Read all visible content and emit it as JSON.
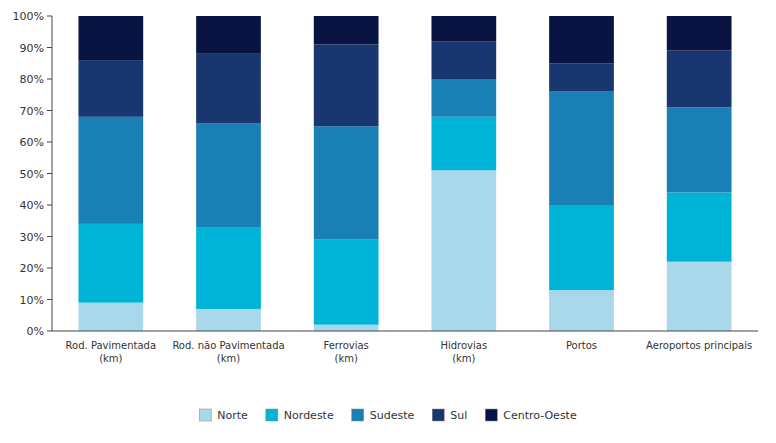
{
  "chart_data": {
    "type": "bar",
    "stacked": true,
    "grid": false,
    "legend": "bottom",
    "categories": [
      "Rod. Pavimentada\n(km)",
      "Rod. não Pavimentada\n(km)",
      "Ferrovias\n(km)",
      "Hidrovias\n(km)",
      "Portos",
      "Aeroportos principais"
    ],
    "series": [
      {
        "name": "Norte",
        "color": "#a8d8ea",
        "values": [
          9,
          7,
          2,
          51,
          13,
          22
        ]
      },
      {
        "name": "Nordeste",
        "color": "#00b4d8",
        "values": [
          25,
          26,
          27,
          17,
          27,
          22
        ]
      },
      {
        "name": "Sudeste",
        "color": "#1a7fb5",
        "values": [
          34,
          33,
          36,
          12,
          36,
          27
        ]
      },
      {
        "name": "Sul",
        "color": "#1a3670",
        "values": [
          18,
          22,
          26,
          12,
          9,
          18
        ]
      },
      {
        "name": "Centro-Oeste",
        "color": "#0a1442",
        "values": [
          14,
          12,
          9,
          8,
          15,
          11
        ]
      }
    ],
    "ylim": [
      0,
      100
    ],
    "yticks": [
      {
        "value": 0,
        "label": "0%"
      },
      {
        "value": 10,
        "label": "10%"
      },
      {
        "value": 20,
        "label": "20%"
      },
      {
        "value": 30,
        "label": "30%"
      },
      {
        "value": 40,
        "label": "40%"
      },
      {
        "value": 50,
        "label": "50%"
      },
      {
        "value": 60,
        "label": "60%"
      },
      {
        "value": 70,
        "label": "70%"
      },
      {
        "value": 80,
        "label": "80%"
      },
      {
        "value": 90,
        "label": "90%"
      },
      {
        "value": 100,
        "label": "100%"
      }
    ]
  }
}
